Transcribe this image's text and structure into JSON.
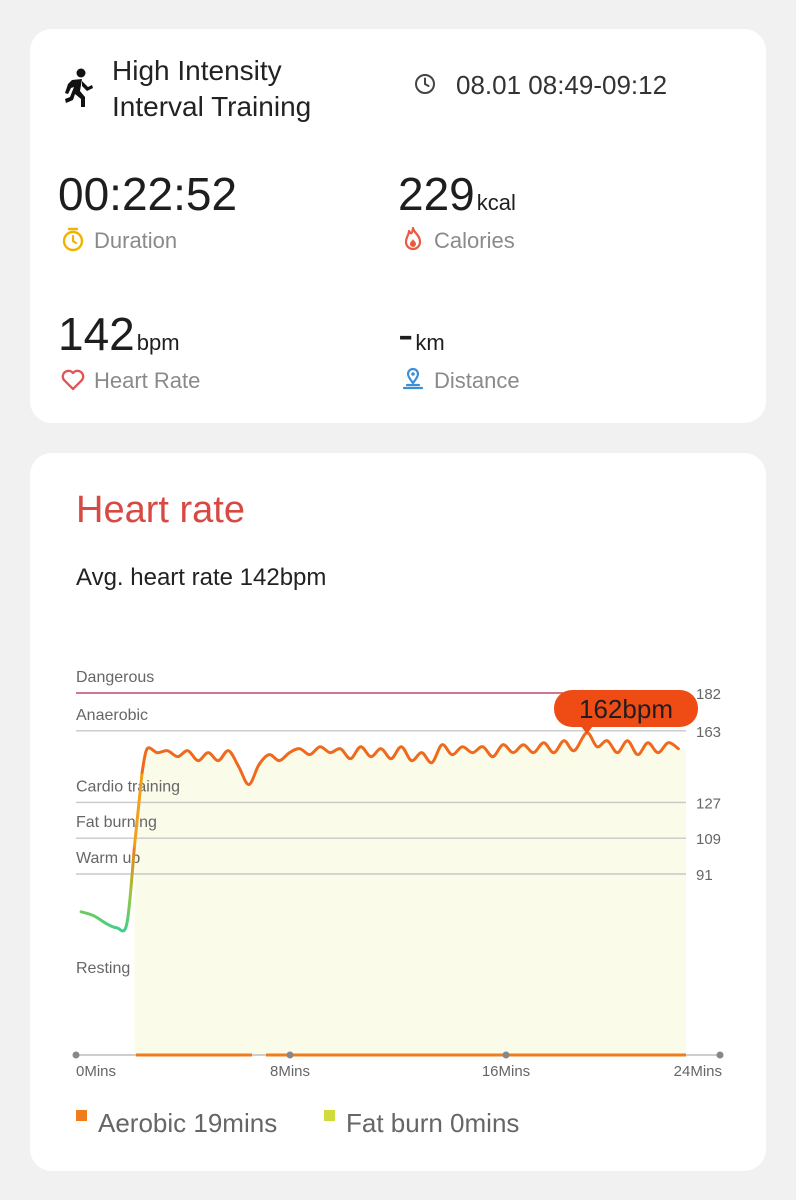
{
  "workout": {
    "title_line1": "High Intensity",
    "title_line2": "Interval Training",
    "time_range": "08.01 08:49-09:12",
    "icon": "runner-icon"
  },
  "metrics": {
    "duration": {
      "value": "00:22:52",
      "unit": "",
      "label": "Duration",
      "icon": "stopwatch-icon",
      "color": "#f0b400"
    },
    "calories": {
      "value": "229",
      "unit": "kcal",
      "label": "Calories",
      "icon": "flame-icon",
      "color": "#ea5a3e"
    },
    "heart_rate": {
      "value": "142",
      "unit": "bpm",
      "label": "Heart Rate",
      "icon": "heart-icon",
      "color": "#e05555"
    },
    "distance": {
      "value": "-",
      "unit": "km",
      "label": "Distance",
      "icon": "location-pin-icon",
      "color": "#3b8fd8"
    }
  },
  "heart_rate_section": {
    "title": "Heart rate",
    "average": "Avg. heart rate 142bpm",
    "peak_label": "162bpm"
  },
  "legend": [
    {
      "label": "Aerobic 19mins",
      "color": "#f07d1b"
    },
    {
      "label": "Fat burn 0mins",
      "color": "#cfdc3c"
    }
  ],
  "chart_data": {
    "type": "line",
    "zones": [
      {
        "name": "Dangerous",
        "threshold": 182
      },
      {
        "name": "Anaerobic",
        "threshold": 163
      },
      {
        "name": "Cardio training",
        "threshold": 127
      },
      {
        "name": "Fat burning",
        "threshold": 109
      },
      {
        "name": "Warm up",
        "threshold": 91
      },
      {
        "name": "Resting",
        "threshold": null
      }
    ],
    "y_ticks": [
      182,
      163,
      127,
      109,
      91
    ],
    "x_ticks": [
      "0Mins",
      "8Mins",
      "16Mins",
      "24Mins"
    ],
    "xlim": [
      0,
      24
    ],
    "ylim": [
      0,
      182
    ],
    "peak": {
      "x": 20.1,
      "y": 162
    },
    "series": [
      {
        "x": [
          0.2,
          0.7,
          1.2,
          1.6,
          2.0,
          2.3,
          2.6,
          2.8,
          3.2,
          3.6,
          4.0,
          4.4,
          4.8,
          5.2,
          5.6,
          6.0,
          6.4,
          6.8,
          7.2,
          7.6,
          8.0,
          8.4,
          8.8,
          9.2,
          9.6,
          10.0,
          10.4,
          10.8,
          11.2,
          11.6,
          12.0,
          12.4,
          12.8,
          13.2,
          13.6,
          14.0,
          14.4,
          14.8,
          15.2,
          15.6,
          16.0,
          16.4,
          16.8,
          17.2,
          17.6,
          18.0,
          18.4,
          18.8,
          19.2,
          19.6,
          20.1,
          20.5,
          20.9,
          21.3,
          21.7,
          22.1,
          22.5,
          22.9,
          23.3,
          23.7
        ],
        "y": [
          72,
          70,
          66,
          64,
          66,
          105,
          142,
          154,
          152,
          153,
          150,
          153,
          148,
          152,
          148,
          153,
          145,
          136,
          146,
          151,
          148,
          152,
          154,
          151,
          155,
          152,
          154,
          149,
          155,
          150,
          154,
          149,
          155,
          148,
          152,
          147,
          156,
          151,
          155,
          152,
          155,
          150,
          156,
          152,
          156,
          152,
          157,
          152,
          158,
          153,
          162,
          155,
          158,
          152,
          158,
          151,
          157,
          152,
          157,
          154
        ]
      }
    ]
  }
}
